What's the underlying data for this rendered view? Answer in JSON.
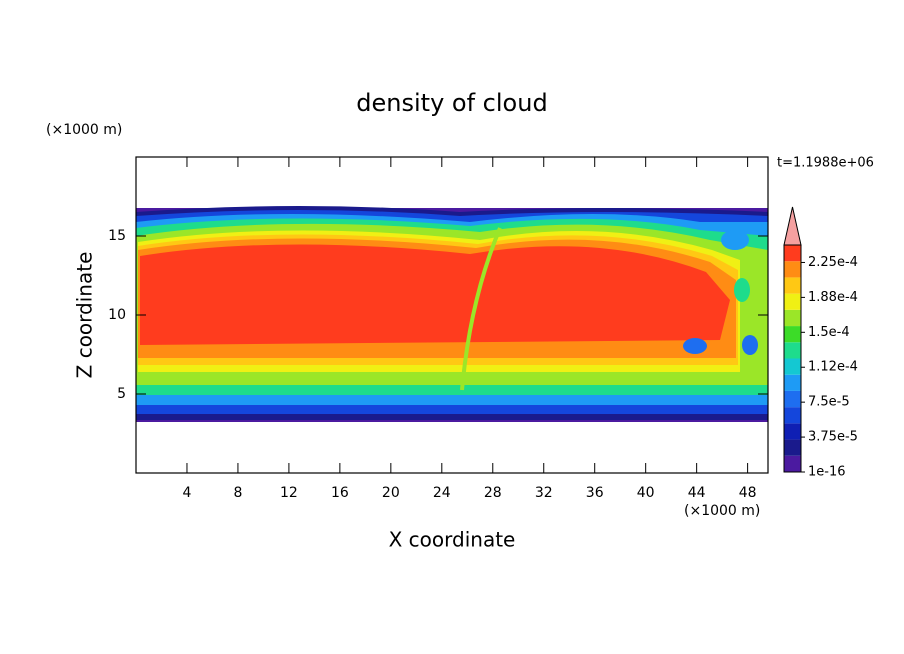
{
  "chart_data": {
    "type": "contour",
    "title": "density of cloud",
    "x_label": "X coordinate",
    "y_label": "Z coordinate",
    "x_unit": "(×1000 m)",
    "y_unit": "(×1000 m)",
    "annotation": "t=1.1988e+06",
    "xlim": [
      0,
      49.6
    ],
    "ylim": [
      0,
      20
    ],
    "xticks": [
      4,
      8,
      12,
      16,
      20,
      24,
      28,
      32,
      36,
      40,
      44,
      48
    ],
    "yticks": [
      5,
      10,
      15
    ],
    "colorbar": {
      "lim": [
        1e-16,
        0.00024375
      ],
      "ticks": [
        {
          "value": 1e-16,
          "label": "1e-16"
        },
        {
          "value": 3.75e-05,
          "label": "3.75e-5"
        },
        {
          "value": 7.5e-05,
          "label": "7.5e-5"
        },
        {
          "value": 0.0001125,
          "label": "1.12e-4"
        },
        {
          "value": 0.00015,
          "label": "1.5e-4"
        },
        {
          "value": 0.0001875,
          "label": "1.88e-4"
        },
        {
          "value": 0.000225,
          "label": "2.25e-4"
        }
      ],
      "colors": [
        "#4b1aa0",
        "#1a1a8c",
        "#0f1fb4",
        "#1446dc",
        "#1e6ef0",
        "#1e9bf5",
        "#14c8d2",
        "#1edc8c",
        "#3cdc28",
        "#9be628",
        "#f0f014",
        "#ffc814",
        "#ff8c14",
        "#ff3c1e"
      ],
      "extend_color": "#f5a0a0"
    }
  }
}
